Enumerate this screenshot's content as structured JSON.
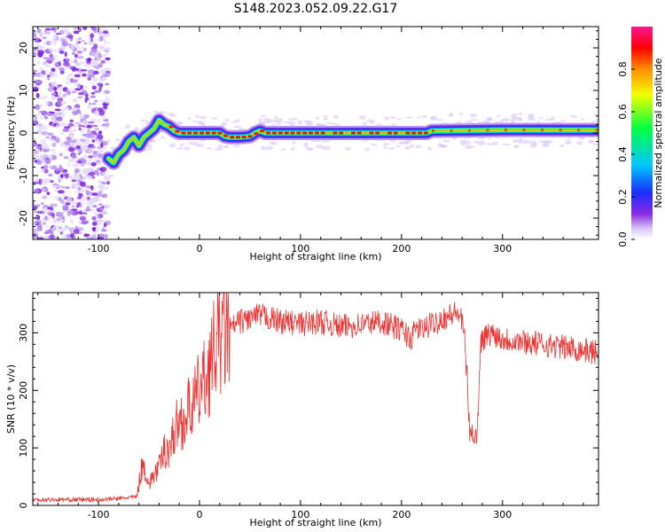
{
  "title": "S148.2023.052.09.22.G17",
  "colors": {
    "snr_line": "#ee3333",
    "axes": "#000000",
    "background": "#ffffff",
    "colormap": [
      "#ffffff",
      "#d9c7f5",
      "#8a2be2",
      "#1a2dff",
      "#00c8ff",
      "#00ff44",
      "#f0ff00",
      "#ff8c00",
      "#ff0000",
      "#ff1493"
    ]
  },
  "chart_data": [
    {
      "type": "heatmap",
      "xlabel": "Height of straight line (km)",
      "ylabel": "Frequency (Hz)",
      "xlim": [
        -165,
        395
      ],
      "ylim": [
        -25,
        25
      ],
      "xticks": [
        "-100",
        "0",
        "100",
        "200",
        "300"
      ],
      "yticks": [
        "-20",
        "-10",
        "0",
        "10",
        "20"
      ],
      "noise_region_x": [
        -165,
        -90
      ],
      "ridge": {
        "x": [
          -90,
          -85,
          -80,
          -75,
          -70,
          -65,
          -60,
          -55,
          -50,
          -45,
          -40,
          -35,
          -30,
          -25,
          -20,
          -10,
          0,
          10,
          20,
          25,
          30,
          40,
          50,
          55,
          60,
          65,
          70,
          100,
          150,
          200,
          225,
          230,
          300,
          395
        ],
        "y": [
          -6,
          -7,
          -5,
          -4,
          -2,
          -1,
          -3,
          -1,
          0,
          1,
          3,
          2,
          1.5,
          0.5,
          0,
          0,
          0,
          0,
          0,
          -0.8,
          -1,
          -1,
          -0.8,
          0,
          0.5,
          0,
          0,
          0,
          0,
          0,
          0,
          0.5,
          0.7,
          0.7
        ]
      },
      "colorbar": {
        "label": "Normalized spectral amplitude",
        "range": [
          0,
          1
        ],
        "ticks": [
          "0.0",
          "0.2",
          "0.4",
          "0.6",
          "0.8"
        ]
      }
    },
    {
      "type": "line",
      "xlabel": "Height of straight line (km)",
      "ylabel": "SNR (10 * v/v)",
      "xlim": [
        -165,
        395
      ],
      "ylim": [
        0,
        370
      ],
      "xticks": [
        "-100",
        "0",
        "100",
        "200",
        "300"
      ],
      "yticks": [
        "0",
        "100",
        "200",
        "300"
      ],
      "series": [
        {
          "x": [
            -165,
            -140,
            -120,
            -100,
            -80,
            -62,
            -58,
            -55,
            -50,
            -45,
            -40,
            -35,
            -30,
            -25,
            -20,
            -15,
            -10,
            -5,
            0,
            5,
            10,
            15,
            20,
            25,
            30,
            40,
            50,
            60,
            70,
            80,
            100,
            120,
            140,
            160,
            180,
            200,
            210,
            215,
            220,
            240,
            255,
            258,
            262,
            265,
            268,
            270,
            272,
            275,
            278,
            280,
            290,
            300,
            320,
            340,
            360,
            380,
            395
          ],
          "y": [
            10,
            10,
            10,
            10,
            12,
            15,
            60,
            70,
            35,
            55,
            65,
            95,
            100,
            125,
            150,
            145,
            170,
            180,
            200,
            215,
            240,
            270,
            290,
            300,
            305,
            320,
            325,
            330,
            325,
            320,
            315,
            320,
            310,
            315,
            320,
            305,
            290,
            310,
            305,
            325,
            335,
            330,
            300,
            220,
            110,
            130,
            125,
            120,
            280,
            290,
            300,
            290,
            285,
            280,
            275,
            270,
            265
          ]
        }
      ]
    }
  ]
}
